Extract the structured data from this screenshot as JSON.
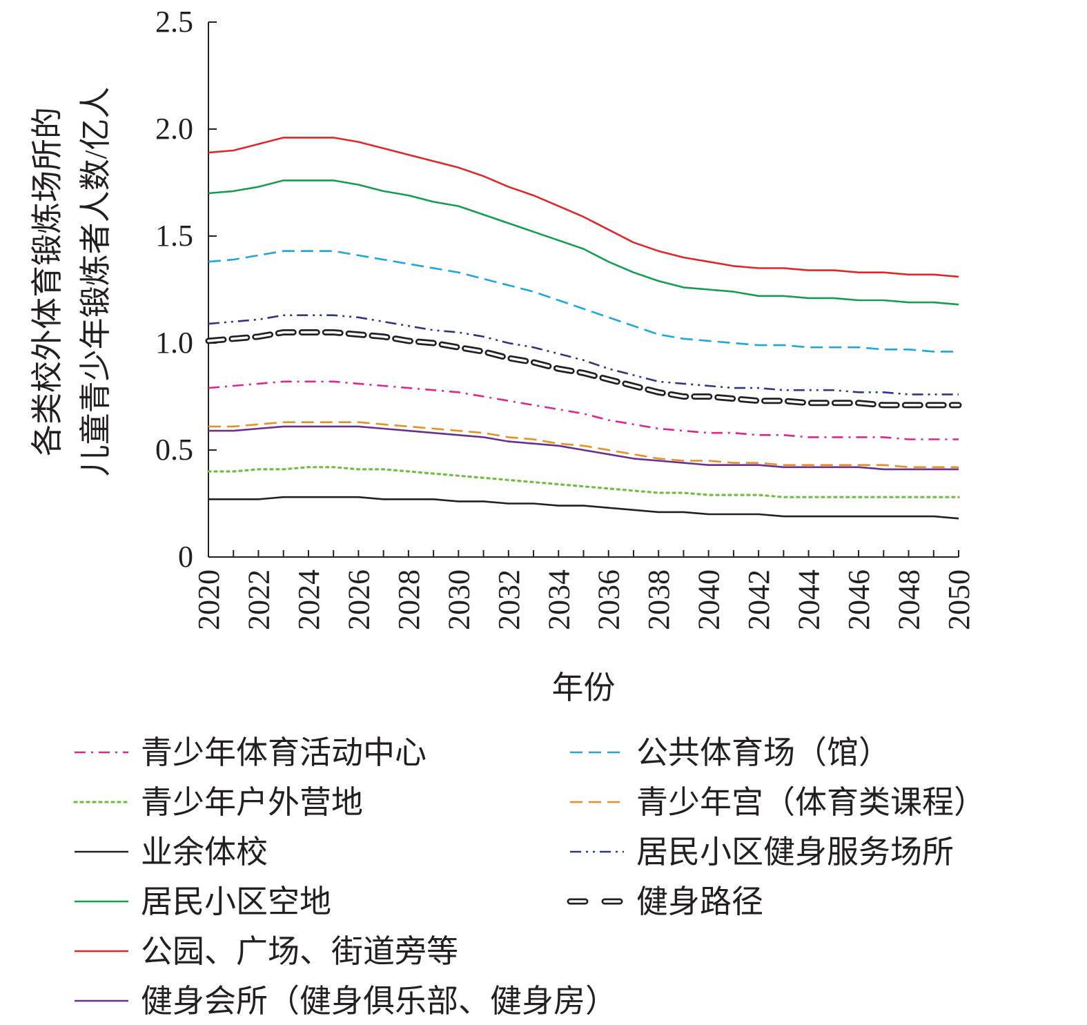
{
  "chart_data": {
    "type": "line",
    "title": "",
    "xlabel": "年份",
    "ylabel_lines": [
      "各类校外体育锻炼场所的",
      "儿童青少年锻炼者人数/亿人"
    ],
    "ylim": [
      0,
      2.5
    ],
    "yticks": [
      0,
      0.5,
      1.0,
      1.5,
      2.0,
      2.5
    ],
    "ytick_labels": [
      "0",
      "0.5",
      "1.0",
      "1.5",
      "2.0",
      "2.5"
    ],
    "xlim": [
      2020,
      2050
    ],
    "xtick_labels": [
      "2020",
      "2022",
      "2024",
      "2026",
      "2028",
      "2030",
      "2032",
      "2034",
      "2036",
      "2038",
      "2040",
      "2042",
      "2044",
      "2046",
      "2048",
      "2050"
    ],
    "x": [
      2020,
      2021,
      2022,
      2023,
      2024,
      2025,
      2026,
      2027,
      2028,
      2029,
      2030,
      2031,
      2032,
      2033,
      2034,
      2035,
      2036,
      2037,
      2038,
      2039,
      2040,
      2041,
      2042,
      2043,
      2044,
      2045,
      2046,
      2047,
      2048,
      2049,
      2050
    ],
    "series": [
      {
        "name": "公园、广场、街道旁等",
        "color": "#e32528",
        "style": "solid",
        "values": [
          1.89,
          1.9,
          1.93,
          1.96,
          1.96,
          1.96,
          1.94,
          1.91,
          1.88,
          1.85,
          1.82,
          1.78,
          1.73,
          1.69,
          1.64,
          1.59,
          1.53,
          1.47,
          1.43,
          1.4,
          1.38,
          1.36,
          1.35,
          1.35,
          1.34,
          1.34,
          1.33,
          1.33,
          1.32,
          1.32,
          1.31
        ]
      },
      {
        "name": "居民小区空地",
        "color": "#129e4e",
        "style": "solid",
        "values": [
          1.7,
          1.71,
          1.73,
          1.76,
          1.76,
          1.76,
          1.74,
          1.71,
          1.69,
          1.66,
          1.64,
          1.6,
          1.56,
          1.52,
          1.48,
          1.44,
          1.38,
          1.33,
          1.29,
          1.26,
          1.25,
          1.24,
          1.22,
          1.22,
          1.21,
          1.21,
          1.2,
          1.2,
          1.19,
          1.19,
          1.18
        ]
      },
      {
        "name": "公共体育场（馆）",
        "color": "#1ba6e0",
        "style": "dash",
        "values": [
          1.38,
          1.39,
          1.41,
          1.43,
          1.43,
          1.43,
          1.41,
          1.39,
          1.37,
          1.35,
          1.33,
          1.3,
          1.27,
          1.24,
          1.2,
          1.16,
          1.12,
          1.08,
          1.04,
          1.02,
          1.01,
          1.0,
          0.99,
          0.99,
          0.98,
          0.98,
          0.98,
          0.97,
          0.97,
          0.96,
          0.96
        ]
      },
      {
        "name": "居民小区健身服务场所",
        "color": "#2e3583",
        "style": "dashdotdot",
        "values": [
          1.09,
          1.1,
          1.11,
          1.13,
          1.13,
          1.13,
          1.12,
          1.1,
          1.08,
          1.06,
          1.05,
          1.03,
          1.0,
          0.98,
          0.95,
          0.92,
          0.88,
          0.85,
          0.82,
          0.81,
          0.8,
          0.79,
          0.79,
          0.78,
          0.78,
          0.78,
          0.77,
          0.77,
          0.76,
          0.76,
          0.76
        ]
      },
      {
        "name": "健身路径",
        "color": "#231f20",
        "style": "capsule",
        "values": [
          1.01,
          1.02,
          1.03,
          1.05,
          1.05,
          1.05,
          1.04,
          1.03,
          1.01,
          1.0,
          0.98,
          0.96,
          0.93,
          0.91,
          0.88,
          0.86,
          0.83,
          0.8,
          0.77,
          0.75,
          0.75,
          0.74,
          0.73,
          0.73,
          0.72,
          0.72,
          0.72,
          0.71,
          0.71,
          0.71,
          0.71
        ]
      },
      {
        "name": "青少年体育活动中心",
        "color": "#e5218d",
        "style": "dashdot",
        "values": [
          0.79,
          0.8,
          0.81,
          0.82,
          0.82,
          0.82,
          0.81,
          0.8,
          0.79,
          0.78,
          0.77,
          0.75,
          0.73,
          0.71,
          0.69,
          0.67,
          0.64,
          0.62,
          0.6,
          0.59,
          0.58,
          0.58,
          0.57,
          0.57,
          0.56,
          0.56,
          0.56,
          0.56,
          0.55,
          0.55,
          0.55
        ]
      },
      {
        "name": "青少年宫（体育类课程）",
        "color": "#e88f23",
        "style": "dash",
        "values": [
          0.61,
          0.61,
          0.62,
          0.63,
          0.63,
          0.63,
          0.63,
          0.62,
          0.61,
          0.6,
          0.59,
          0.58,
          0.56,
          0.55,
          0.53,
          0.52,
          0.5,
          0.48,
          0.46,
          0.45,
          0.45,
          0.44,
          0.44,
          0.43,
          0.43,
          0.43,
          0.43,
          0.43,
          0.42,
          0.42,
          0.42
        ]
      },
      {
        "name": "健身会所（健身俱乐部、健身房）",
        "color": "#6a2e8e",
        "style": "solid",
        "values": [
          0.59,
          0.59,
          0.6,
          0.61,
          0.61,
          0.61,
          0.61,
          0.6,
          0.59,
          0.58,
          0.57,
          0.56,
          0.54,
          0.53,
          0.52,
          0.5,
          0.48,
          0.46,
          0.45,
          0.44,
          0.43,
          0.43,
          0.43,
          0.42,
          0.42,
          0.42,
          0.42,
          0.41,
          0.41,
          0.41,
          0.41
        ]
      },
      {
        "name": "青少年户外营地",
        "color": "#6bbf3c",
        "style": "dot",
        "values": [
          0.4,
          0.4,
          0.41,
          0.41,
          0.42,
          0.42,
          0.41,
          0.41,
          0.4,
          0.39,
          0.38,
          0.37,
          0.36,
          0.35,
          0.34,
          0.33,
          0.32,
          0.31,
          0.3,
          0.3,
          0.29,
          0.29,
          0.29,
          0.28,
          0.28,
          0.28,
          0.28,
          0.28,
          0.28,
          0.28,
          0.28
        ]
      },
      {
        "name": "业余体校",
        "color": "#231f20",
        "style": "solid",
        "values": [
          0.27,
          0.27,
          0.27,
          0.28,
          0.28,
          0.28,
          0.28,
          0.27,
          0.27,
          0.27,
          0.26,
          0.26,
          0.25,
          0.25,
          0.24,
          0.24,
          0.23,
          0.22,
          0.21,
          0.21,
          0.2,
          0.2,
          0.2,
          0.19,
          0.19,
          0.19,
          0.19,
          0.19,
          0.19,
          0.19,
          0.18
        ]
      }
    ],
    "legend": {
      "placement": "bottom",
      "left_column": [
        "青少年体育活动中心",
        "青少年户外营地",
        "业余体校",
        "居民小区空地",
        "公园、广场、街道旁等",
        "健身会所（健身俱乐部、健身房）"
      ],
      "right_column": [
        "公共体育场（馆）",
        "青少年宫（体育类课程）",
        "居民小区健身服务场所",
        "健身路径"
      ]
    },
    "grid": false
  }
}
